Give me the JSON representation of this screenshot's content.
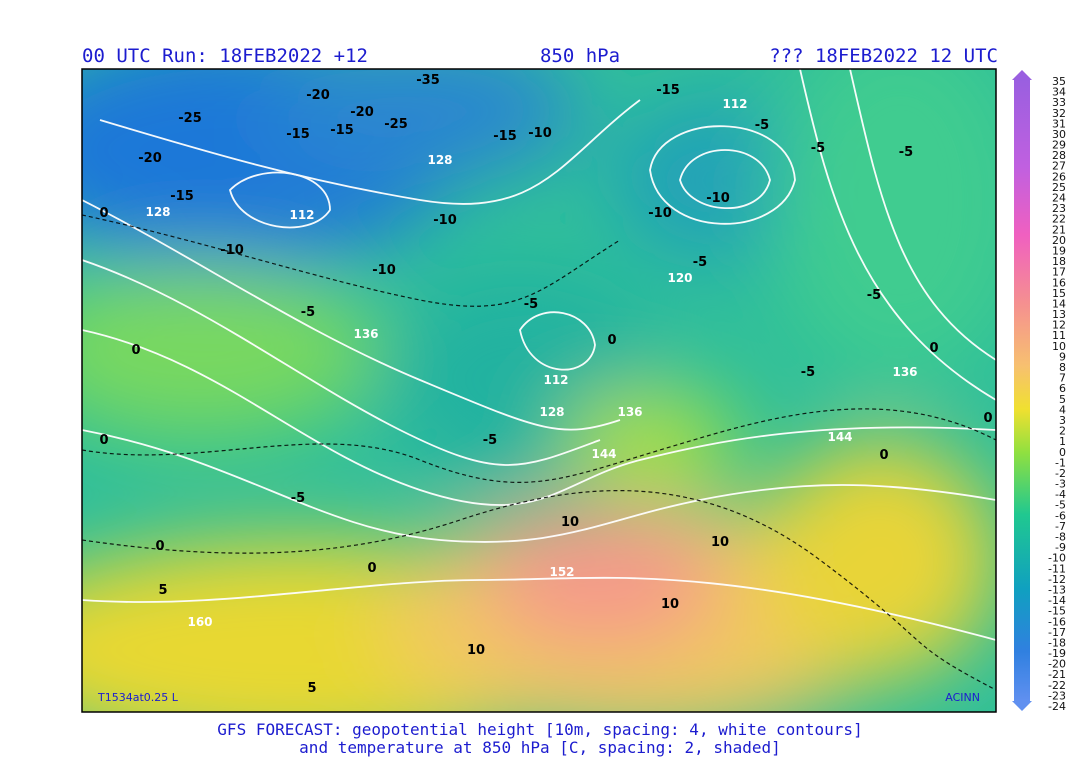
{
  "header": {
    "run": "00 UTC Run: 18FEB2022 +12",
    "level": "850 hPa",
    "valid": "??? 18FEB2022 12 UTC"
  },
  "map": {
    "model_tag": "T1534at0.25 L",
    "credit": "ACINN",
    "height_labels": [
      112,
      128,
      112,
      128,
      120,
      136,
      112,
      128,
      136,
      144,
      144,
      136,
      152,
      160
    ],
    "temperature_labels": [
      -35,
      -25,
      -20,
      -20,
      -25,
      -15,
      -15,
      -15,
      -10,
      -15,
      -5,
      -5,
      -5,
      -20,
      -15,
      -10,
      -10,
      -10,
      -10,
      -10,
      -5,
      -5,
      -5,
      -5,
      -5,
      0,
      0,
      0,
      0,
      0,
      -5,
      -5,
      0,
      0,
      5,
      5,
      10,
      10,
      10,
      10,
      0,
      0
    ]
  },
  "colorbar": {
    "levels": [
      35,
      34,
      33,
      32,
      31,
      30,
      29,
      28,
      27,
      26,
      25,
      24,
      23,
      22,
      21,
      20,
      19,
      18,
      17,
      16,
      15,
      14,
      13,
      12,
      11,
      10,
      9,
      8,
      7,
      6,
      5,
      4,
      3,
      2,
      1,
      0,
      -1,
      -2,
      -3,
      -4,
      -5,
      -6,
      -7,
      -8,
      -9,
      -10,
      -11,
      -12,
      -13,
      -14,
      -15,
      -16,
      -17,
      -18,
      -19,
      -20,
      -21,
      -22,
      -23,
      -24
    ]
  },
  "footer": {
    "line1": "GFS FORECAST: geopotential height [10m, spacing: 4, white contours]",
    "line2": "and temperature at 850 hPa [C, spacing: 2, shaded]"
  }
}
